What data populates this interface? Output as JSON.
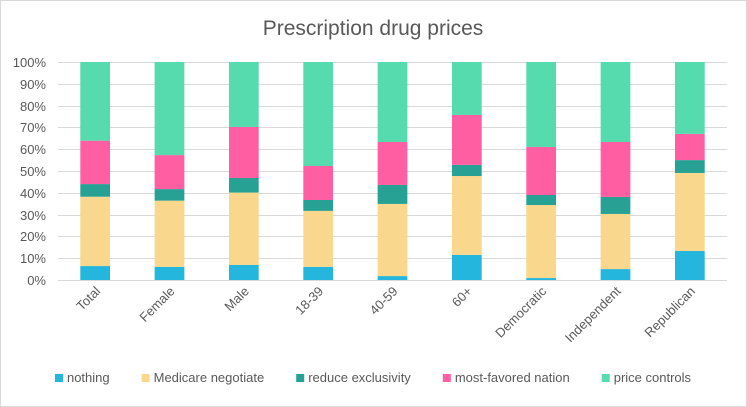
{
  "chart_data": {
    "type": "bar",
    "stacked": true,
    "title": "Prescription drug prices",
    "xlabel": "",
    "ylabel": "",
    "ylim": [
      0,
      100
    ],
    "yticks": [
      "0%",
      "10%",
      "20%",
      "30%",
      "40%",
      "50%",
      "60%",
      "70%",
      "80%",
      "90%",
      "100%"
    ],
    "grid": true,
    "legend_position": "bottom",
    "categories": [
      "Total",
      "Female",
      "Male",
      "18-39",
      "40-59",
      "60+",
      "Democratic",
      "Independent",
      "Republican"
    ],
    "series": [
      {
        "name": "nothing",
        "color": "#24B6DD",
        "values": [
          6.4,
          6.0,
          6.9,
          6.0,
          1.8,
          11.5,
          0.9,
          5.0,
          13.3
        ]
      },
      {
        "name": "Medicare negotiate",
        "color": "#F9D78C",
        "values": [
          31.8,
          30.4,
          33.2,
          25.7,
          33.1,
          36.2,
          33.5,
          25.3,
          35.8
        ]
      },
      {
        "name": "reduce exclusivity",
        "color": "#28A195",
        "values": [
          5.8,
          5.3,
          6.7,
          5.0,
          8.7,
          5.1,
          4.6,
          7.8,
          5.9
        ]
      },
      {
        "name": "most-favored nation",
        "color": "#FF5FA2",
        "values": [
          19.9,
          15.6,
          23.4,
          15.6,
          19.7,
          22.9,
          22.0,
          25.2,
          12.0
        ]
      },
      {
        "name": "price controls",
        "color": "#55DBAE",
        "values": [
          36.1,
          42.7,
          29.8,
          47.7,
          36.7,
          24.3,
          39.0,
          36.7,
          33.0
        ]
      }
    ]
  }
}
